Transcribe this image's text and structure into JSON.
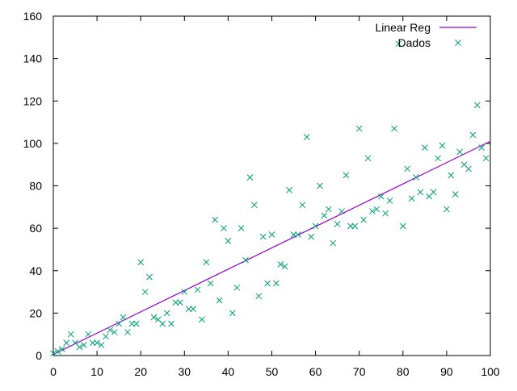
{
  "chart_data": {
    "type": "scatter",
    "title": "",
    "xlabel": "",
    "ylabel": "",
    "xlim": [
      0,
      100
    ],
    "ylim": [
      0,
      160
    ],
    "x_ticks": [
      0,
      10,
      20,
      30,
      40,
      50,
      60,
      70,
      80,
      90,
      100
    ],
    "y_ticks": [
      0,
      20,
      40,
      60,
      80,
      100,
      120,
      140,
      160
    ],
    "grid": false,
    "legend_position": "top-right",
    "series": [
      {
        "name": "Linear Reg",
        "type": "line",
        "color": "#9400d3",
        "x": [
          0,
          100
        ],
        "y": [
          0.5,
          101
        ]
      },
      {
        "name": "Dados",
        "type": "scatter",
        "marker": "x",
        "color": "#009e73",
        "x": [
          0,
          1,
          2,
          3,
          4,
          5,
          6,
          7,
          8,
          9,
          10,
          11,
          12,
          13,
          14,
          15,
          16,
          17,
          18,
          19,
          20,
          21,
          22,
          23,
          24,
          25,
          26,
          27,
          28,
          29,
          30,
          31,
          32,
          33,
          34,
          35,
          36,
          37,
          38,
          39,
          40,
          41,
          42,
          43,
          44,
          45,
          46,
          47,
          48,
          49,
          50,
          51,
          52,
          53,
          54,
          55,
          56,
          57,
          58,
          59,
          60,
          61,
          62,
          63,
          64,
          65,
          66,
          67,
          68,
          69,
          70,
          71,
          72,
          73,
          74,
          75,
          76,
          77,
          78,
          79,
          80,
          81,
          82,
          83,
          84,
          85,
          86,
          87,
          88,
          89,
          90,
          91,
          92,
          93,
          94,
          95,
          96,
          97,
          98,
          99
        ],
        "y": [
          1,
          2,
          3,
          6,
          10,
          6,
          4,
          5,
          10,
          6,
          6,
          5,
          9,
          12,
          11,
          15,
          18,
          11,
          15,
          15,
          44,
          30,
          37,
          18,
          17,
          15,
          20,
          15,
          25,
          25,
          30,
          22,
          22,
          31,
          17,
          44,
          34,
          64,
          26,
          60,
          54,
          20,
          32,
          60,
          45,
          84,
          71,
          28,
          56,
          34,
          57,
          34,
          43,
          42,
          78,
          57,
          57,
          71,
          103,
          56,
          61,
          80,
          66,
          69,
          53,
          62,
          68,
          85,
          61,
          61,
          107,
          64,
          93,
          68,
          69,
          75,
          67,
          73,
          107,
          147,
          61,
          88,
          74,
          84,
          77,
          98,
          75,
          77,
          93,
          99,
          69,
          85,
          76,
          96,
          90,
          88,
          104,
          118,
          98,
          93
        ]
      }
    ]
  }
}
